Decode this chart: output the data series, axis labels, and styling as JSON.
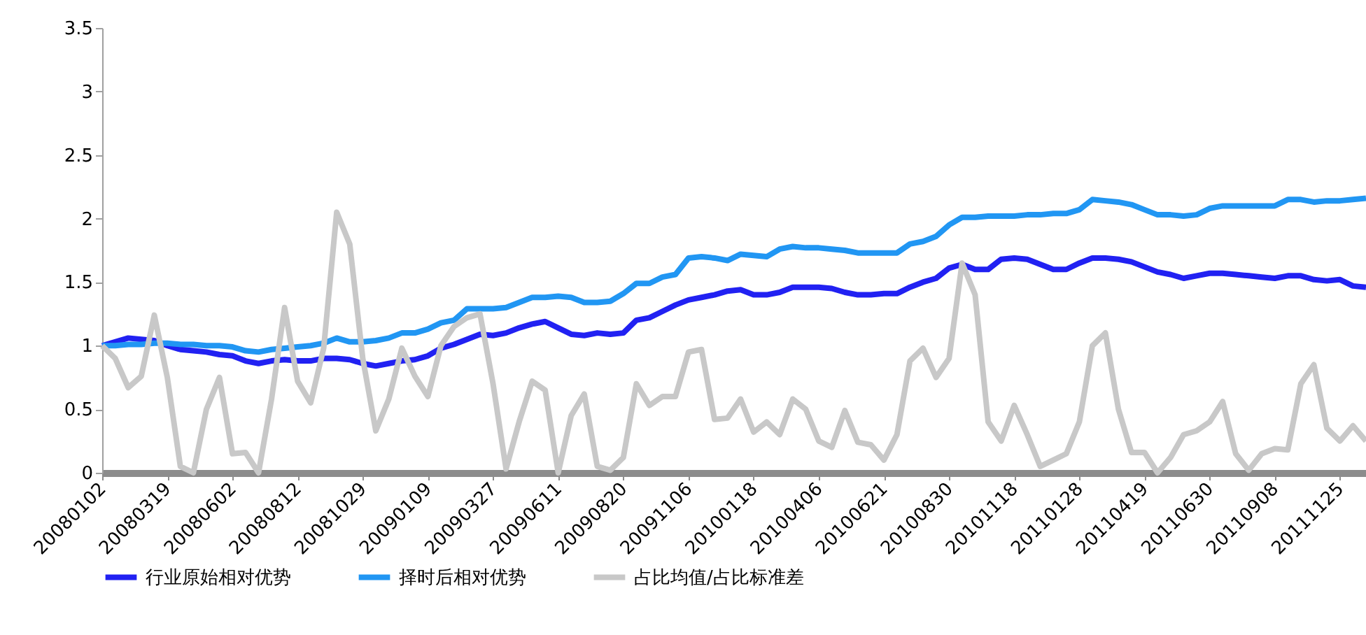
{
  "chart_data": {
    "type": "line",
    "categories": [
      "20080102",
      null,
      null,
      null,
      null,
      "20080319",
      null,
      null,
      null,
      null,
      "20080602",
      null,
      null,
      null,
      null,
      "20080812",
      null,
      null,
      null,
      null,
      "20081029",
      null,
      null,
      null,
      null,
      "20090109",
      null,
      null,
      null,
      null,
      "20090327",
      null,
      null,
      null,
      null,
      "20090611",
      null,
      null,
      null,
      null,
      "20090820",
      null,
      null,
      null,
      null,
      "20091106",
      null,
      null,
      null,
      null,
      "20100118",
      null,
      null,
      null,
      null,
      "20100406",
      null,
      null,
      null,
      null,
      "20100621",
      null,
      null,
      null,
      null,
      "20100830",
      null,
      null,
      null,
      null,
      "20101118",
      null,
      null,
      null,
      null,
      "20110128",
      null,
      null,
      null,
      null,
      "20110419",
      null,
      null,
      null,
      null,
      "20110630",
      null,
      null,
      null,
      null,
      "20110908",
      null,
      null,
      null,
      null,
      "20111125",
      null,
      null
    ],
    "ylim": [
      0,
      3.5
    ],
    "yticks": [
      0,
      0.5,
      1,
      1.5,
      2,
      2.5,
      3,
      3.5
    ],
    "grid": false,
    "legend": "bottom",
    "marker": "none",
    "line_style": "solid",
    "series": [
      {
        "name": "行业原始相对优势",
        "color": "#2121f2",
        "values": [
          1.0,
          1.03,
          1.06,
          1.05,
          1.04,
          1.0,
          0.97,
          0.96,
          0.95,
          0.93,
          0.92,
          0.88,
          0.86,
          0.88,
          0.89,
          0.88,
          0.88,
          0.9,
          0.9,
          0.89,
          0.86,
          0.84,
          0.86,
          0.88,
          0.89,
          0.92,
          0.98,
          1.01,
          1.05,
          1.09,
          1.08,
          1.1,
          1.14,
          1.17,
          1.19,
          1.14,
          1.09,
          1.08,
          1.1,
          1.09,
          1.1,
          1.2,
          1.22,
          1.27,
          1.32,
          1.36,
          1.38,
          1.4,
          1.43,
          1.44,
          1.4,
          1.4,
          1.42,
          1.46,
          1.46,
          1.46,
          1.45,
          1.42,
          1.4,
          1.4,
          1.41,
          1.41,
          1.46,
          1.5,
          1.53,
          1.61,
          1.64,
          1.6,
          1.6,
          1.68,
          1.69,
          1.68,
          1.64,
          1.6,
          1.6,
          1.65,
          1.69,
          1.69,
          1.68,
          1.66,
          1.62,
          1.58,
          1.56,
          1.53,
          1.55,
          1.57,
          1.57,
          1.56,
          1.55,
          1.54,
          1.53,
          1.55,
          1.55,
          1.52,
          1.51,
          1.52,
          1.47,
          1.46
        ]
      },
      {
        "name": "择时后相对优势",
        "color": "#2196f3",
        "values": [
          1.0,
          1.0,
          1.01,
          1.01,
          1.02,
          1.02,
          1.01,
          1.01,
          1.0,
          1.0,
          0.99,
          0.96,
          0.95,
          0.97,
          0.98,
          0.99,
          1.0,
          1.02,
          1.06,
          1.03,
          1.03,
          1.04,
          1.06,
          1.1,
          1.1,
          1.13,
          1.18,
          1.2,
          1.29,
          1.29,
          1.29,
          1.3,
          1.34,
          1.38,
          1.38,
          1.39,
          1.38,
          1.34,
          1.34,
          1.35,
          1.41,
          1.49,
          1.49,
          1.54,
          1.56,
          1.69,
          1.7,
          1.69,
          1.67,
          1.72,
          1.71,
          1.7,
          1.76,
          1.78,
          1.77,
          1.77,
          1.76,
          1.75,
          1.73,
          1.73,
          1.73,
          1.73,
          1.8,
          1.82,
          1.86,
          1.95,
          2.01,
          2.01,
          2.02,
          2.02,
          2.02,
          2.03,
          2.03,
          2.04,
          2.04,
          2.07,
          2.15,
          2.14,
          2.13,
          2.11,
          2.07,
          2.03,
          2.03,
          2.02,
          2.03,
          2.08,
          2.1,
          2.1,
          2.1,
          2.1,
          2.1,
          2.15,
          2.15,
          2.13,
          2.14,
          2.14,
          2.15,
          2.16
        ]
      },
      {
        "name": "占比均值/占比标准差",
        "color": "#c8c8c8",
        "values": [
          1.0,
          0.9,
          0.67,
          0.76,
          1.24,
          0.75,
          0.05,
          0.0,
          0.5,
          0.75,
          0.15,
          0.16,
          0.0,
          0.58,
          1.3,
          0.72,
          0.55,
          0.98,
          2.05,
          1.8,
          0.9,
          0.33,
          0.58,
          0.98,
          0.76,
          0.6,
          1.0,
          1.15,
          1.22,
          1.25,
          0.7,
          0.03,
          0.4,
          0.72,
          0.65,
          0.0,
          0.45,
          0.62,
          0.05,
          0.02,
          0.12,
          0.7,
          0.53,
          0.6,
          0.6,
          0.95,
          0.97,
          0.42,
          0.43,
          0.58,
          0.32,
          0.4,
          0.3,
          0.58,
          0.5,
          0.25,
          0.2,
          0.49,
          0.24,
          0.22,
          0.1,
          0.3,
          0.88,
          0.98,
          0.75,
          0.9,
          1.65,
          1.4,
          0.4,
          0.25,
          0.53,
          0.3,
          0.05,
          0.1,
          0.15,
          0.4,
          1.0,
          1.1,
          0.5,
          0.16,
          0.16,
          0.0,
          0.12,
          0.3,
          0.33,
          0.4,
          0.56,
          0.15,
          0.02,
          0.15,
          0.19,
          0.18,
          0.7,
          0.85,
          0.35,
          0.25,
          0.37,
          0.25
        ]
      }
    ]
  }
}
